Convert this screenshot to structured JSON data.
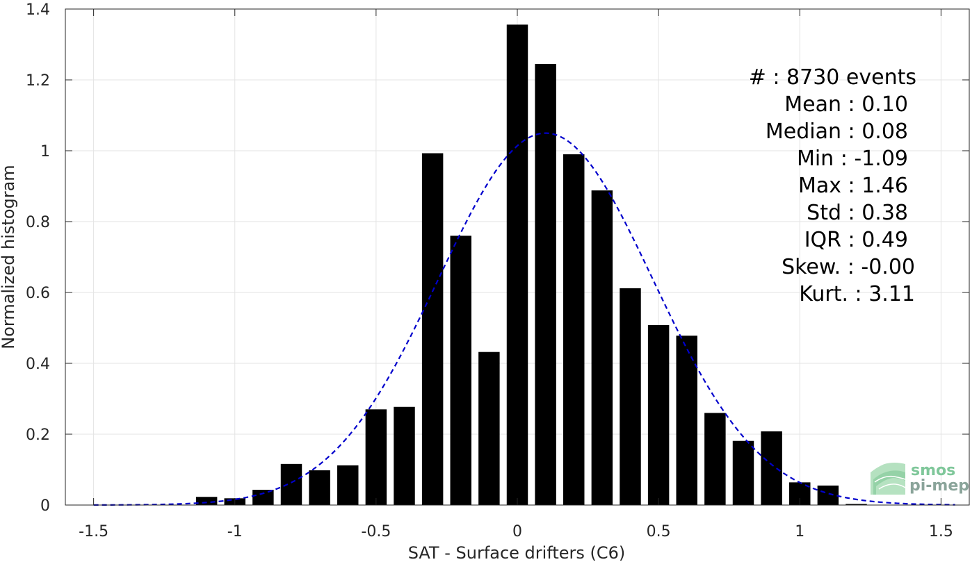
{
  "chart_data": {
    "type": "bar",
    "xlabel": "SAT - Surface drifters (C6)",
    "ylabel": "Normalized histogram",
    "xlim": [
      -1.6,
      1.6
    ],
    "ylim": [
      0,
      1.4
    ],
    "xticks": [
      -1.5,
      -1,
      -0.5,
      0,
      0.5,
      1,
      1.5
    ],
    "xtick_labels": [
      "-1.5",
      "-1",
      "-0.5",
      "0",
      "0.5",
      "1",
      "1.5"
    ],
    "yticks": [
      0,
      0.2,
      0.4,
      0.6,
      0.8,
      1,
      1.2,
      1.4
    ],
    "ytick_labels": [
      "0",
      "0.2",
      "0.4",
      "0.6",
      "0.8",
      "1",
      "1.2",
      "1.4"
    ],
    "grid": true,
    "bar_color": "#000000",
    "bins": [
      {
        "x": -1.1,
        "value": 0.023
      },
      {
        "x": -1.0,
        "value": 0.019
      },
      {
        "x": -0.9,
        "value": 0.043
      },
      {
        "x": -0.8,
        "value": 0.116
      },
      {
        "x": -0.7,
        "value": 0.098
      },
      {
        "x": -0.6,
        "value": 0.112
      },
      {
        "x": -0.5,
        "value": 0.27
      },
      {
        "x": -0.4,
        "value": 0.277
      },
      {
        "x": -0.3,
        "value": 0.993
      },
      {
        "x": -0.2,
        "value": 0.76
      },
      {
        "x": -0.1,
        "value": 0.432
      },
      {
        "x": 0.0,
        "value": 1.356
      },
      {
        "x": 0.1,
        "value": 1.245
      },
      {
        "x": 0.2,
        "value": 0.99
      },
      {
        "x": 0.3,
        "value": 0.888
      },
      {
        "x": 0.4,
        "value": 0.612
      },
      {
        "x": 0.5,
        "value": 0.508
      },
      {
        "x": 0.6,
        "value": 0.478
      },
      {
        "x": 0.7,
        "value": 0.26
      },
      {
        "x": 0.8,
        "value": 0.181
      },
      {
        "x": 0.9,
        "value": 0.208
      },
      {
        "x": 1.0,
        "value": 0.064
      },
      {
        "x": 1.1,
        "value": 0.055
      },
      {
        "x": 1.2,
        "value": 0.003
      }
    ],
    "fit_curve": {
      "type": "gaussian",
      "mean": 0.1,
      "std": 0.38,
      "x_range": [
        -1.5,
        1.55
      ],
      "color": "#0000cc",
      "style": "dashed"
    },
    "stats": [
      "#  : 8730 events",
      "Mean : 0.10",
      "Median : 0.08",
      "Min : -1.09",
      "Max : 1.46",
      "Std : 0.38",
      "IQR : 0.49",
      "Skew. : -0.00",
      "Kurt. : 3.11"
    ]
  },
  "logo": {
    "line1": "smos",
    "line2": "pi-mep",
    "color1": "#7fc79a",
    "color2": "#8aa49a"
  }
}
